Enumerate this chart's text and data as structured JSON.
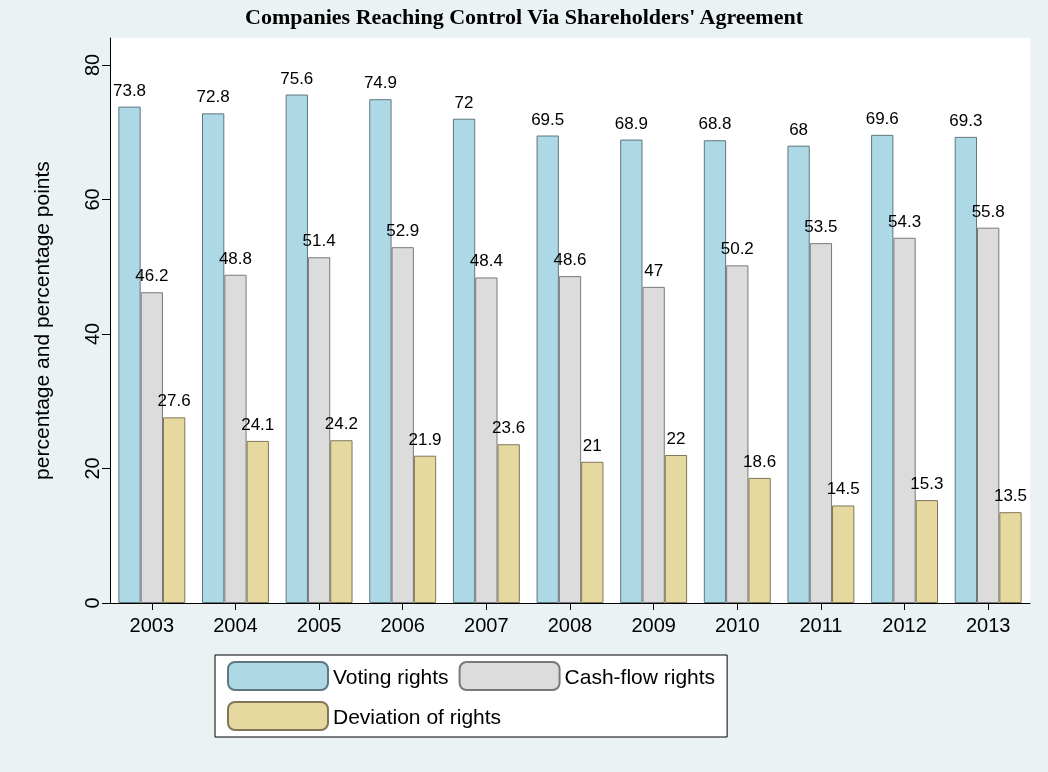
{
  "chart_data": {
    "type": "bar",
    "title": "Companies Reaching Control Via Shareholders' Agreement",
    "ylabel": "percentage and percentage points",
    "categories": [
      "2003",
      "2004",
      "2005",
      "2006",
      "2007",
      "2008",
      "2009",
      "2010",
      "2011",
      "2012",
      "2013"
    ],
    "series": [
      {
        "name": "Voting rights",
        "color": "#add8e6",
        "values": [
          73.8,
          72.8,
          75.6,
          74.9,
          72,
          69.5,
          68.9,
          68.8,
          68,
          69.6,
          69.3
        ]
      },
      {
        "name": "Cash-flow rights",
        "color": "#dcdcdc",
        "values": [
          46.2,
          48.8,
          51.4,
          52.9,
          48.4,
          48.6,
          47,
          50.2,
          53.5,
          54.3,
          55.8
        ]
      },
      {
        "name": "Deviation of rights",
        "color": "#e6d9a0",
        "values": [
          27.6,
          24.1,
          24.2,
          21.9,
          23.6,
          21,
          22,
          18.6,
          14.5,
          15.3,
          13.5
        ]
      }
    ],
    "ylim": [
      0,
      84
    ],
    "yticks": [
      0,
      20,
      40,
      60,
      80
    ],
    "grid": false,
    "legend": "bottom",
    "data_labels": true
  }
}
